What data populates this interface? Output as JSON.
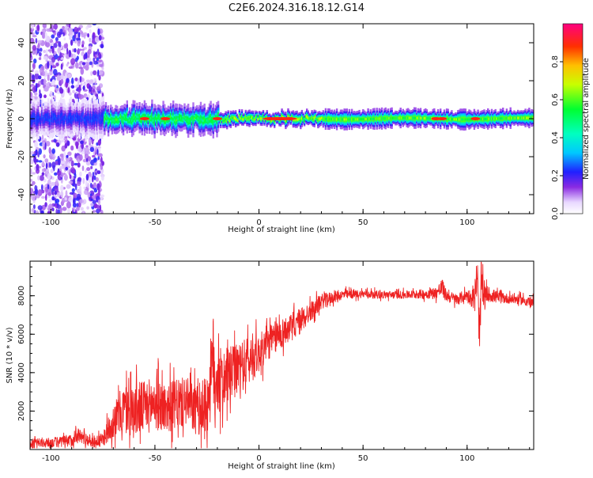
{
  "page": {
    "title": "C2E6.2024.316.18.12.G14"
  },
  "colors": {
    "background": "#ffffff",
    "axis": "#000000",
    "snr_line": "#ee2222",
    "spectrogram_low": "#d8c8ff",
    "spectrogram_mid": "#00ff88",
    "spectrogram_high": "#ff2a2a"
  },
  "chart_data": [
    {
      "type": "heatmap",
      "title": "C2E6.2024.316.18.12.G14",
      "xlabel": "Height of straight line (km)",
      "ylabel": "Frequency (Hz)",
      "xlim": [
        -110,
        132
      ],
      "ylim": [
        -50,
        50
      ],
      "x_ticks": [
        -100,
        -50,
        0,
        50,
        100
      ],
      "y_ticks": [
        -40,
        -20,
        0,
        20,
        40
      ],
      "x_tick_labels": [
        "-100",
        "-50",
        "0",
        "50",
        "100"
      ],
      "y_tick_labels": [
        "-40",
        "-20",
        "0",
        "20",
        "40"
      ],
      "colorbar": {
        "label": "Normalized spectral amplitude",
        "range": [
          0.0,
          1.0
        ],
        "ticks": [
          0.0,
          0.2,
          0.4,
          0.6,
          0.8
        ],
        "tick_labels": [
          "0.0",
          "0.2",
          "0.4",
          "0.6",
          "0.8"
        ],
        "colormap": "rainbow (violet-blue-cyan-green-yellow-red-magenta)"
      },
      "band": {
        "center_frequency_hz": 0,
        "noise_region_km": [
          -110,
          -75
        ],
        "segments": [
          {
            "x_start": -110,
            "x_end": -75,
            "half_width_hz": 5,
            "peak_amplitude": 0.35
          },
          {
            "x_start": -75,
            "x_end": -20,
            "half_width_hz": 4,
            "peak_amplitude": 0.8
          },
          {
            "x_start": -20,
            "x_end": 30,
            "half_width_hz": 2,
            "peak_amplitude": 0.95
          },
          {
            "x_start": 30,
            "x_end": 132,
            "half_width_hz": 2.5,
            "peak_amplitude": 0.9
          }
        ],
        "hot_spots_km": [
          -55,
          -45,
          -20,
          5,
          10,
          15,
          85,
          88,
          104
        ]
      }
    },
    {
      "type": "line",
      "xlabel": "Height of straight line (km)",
      "ylabel": "SNR (10 * v/v)",
      "xlim": [
        -110,
        132
      ],
      "ylim": [
        0,
        9800
      ],
      "x_ticks": [
        -100,
        -50,
        0,
        50,
        100
      ],
      "y_ticks": [
        2000,
        4000,
        6000,
        8000
      ],
      "x_tick_labels": [
        "-100",
        "-50",
        "0",
        "50",
        "100"
      ],
      "y_tick_labels": [
        "2000",
        "4000",
        "6000",
        "8000"
      ],
      "series": [
        {
          "name": "SNR",
          "x": [
            -110,
            -100,
            -90,
            -88,
            -80,
            -75,
            -70,
            -65,
            -60,
            -55,
            -50,
            -45,
            -40,
            -35,
            -30,
            -25,
            -22,
            -20,
            -18,
            -15,
            -10,
            -5,
            0,
            5,
            10,
            15,
            20,
            25,
            30,
            35,
            40,
            50,
            60,
            70,
            80,
            85,
            88,
            90,
            95,
            100,
            103,
            105,
            106,
            107,
            108,
            110,
            115,
            120,
            125,
            132
          ],
          "values": [
            300,
            350,
            450,
            800,
            400,
            500,
            1500,
            2100,
            2000,
            2200,
            2400,
            2200,
            2300,
            2500,
            2000,
            2300,
            4500,
            3800,
            3500,
            3800,
            4200,
            4600,
            5000,
            5600,
            6000,
            6300,
            6700,
            7200,
            7700,
            7900,
            8050,
            8100,
            8050,
            8050,
            8100,
            8150,
            8400,
            8000,
            7800,
            8050,
            7800,
            8700,
            5700,
            9000,
            7800,
            8100,
            7900,
            7850,
            7800,
            7650
          ]
        }
      ],
      "noise_amplitude": [
        250,
        250,
        350,
        400,
        300,
        350,
        900,
        1300,
        1400,
        1400,
        1400,
        1300,
        1300,
        1300,
        1300,
        1600,
        2600,
        2200,
        1600,
        1500,
        1300,
        1300,
        1000,
        900,
        800,
        700,
        700,
        500,
        400,
        300,
        250,
        200,
        200,
        200,
        250,
        300,
        500,
        300,
        300,
        300,
        500,
        800,
        1200,
        1000,
        700,
        400,
        300,
        250,
        250,
        250
      ]
    }
  ]
}
